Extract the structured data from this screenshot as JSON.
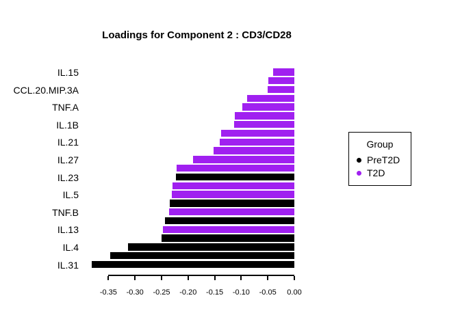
{
  "page": {
    "background": "#ffffff"
  },
  "chart_data": {
    "type": "bar",
    "orientation": "horizontal",
    "title": "Loadings for Component 2 : CD3/CD28",
    "xlabel": "",
    "ylabel": "",
    "xlim": [
      -0.3866,
      0
    ],
    "grid": false,
    "x_ticks": [
      {
        "value": -0.35,
        "label": "-0.35"
      },
      {
        "value": -0.3,
        "label": "-0.30"
      },
      {
        "value": -0.25,
        "label": "-0.25"
      },
      {
        "value": -0.2,
        "label": "-0.20"
      },
      {
        "value": -0.15,
        "label": "-0.15"
      },
      {
        "value": -0.1,
        "label": "-0.10"
      },
      {
        "value": -0.05,
        "label": "-0.05"
      },
      {
        "value": 0.0,
        "label": "0.00"
      }
    ],
    "groups": {
      "PreT2D": "#000000",
      "T2D": "#A020F0"
    },
    "bars": [
      {
        "label": "IL.15",
        "value": -0.04,
        "group": "T2D"
      },
      {
        "label": "",
        "value": -0.049,
        "group": "T2D"
      },
      {
        "label": "CCL.20.MIP.3A",
        "value": -0.05,
        "group": "T2D"
      },
      {
        "label": "",
        "value": -0.089,
        "group": "T2D"
      },
      {
        "label": "TNF.A",
        "value": -0.098,
        "group": "T2D"
      },
      {
        "label": "",
        "value": -0.112,
        "group": "T2D"
      },
      {
        "label": "IL.1B",
        "value": -0.114,
        "group": "T2D"
      },
      {
        "label": "",
        "value": -0.138,
        "group": "T2D"
      },
      {
        "label": "IL.21",
        "value": -0.141,
        "group": "T2D"
      },
      {
        "label": "",
        "value": -0.152,
        "group": "T2D"
      },
      {
        "label": "IL.27",
        "value": -0.191,
        "group": "T2D"
      },
      {
        "label": "",
        "value": -0.222,
        "group": "T2D"
      },
      {
        "label": "IL.23",
        "value": -0.223,
        "group": "PreT2D"
      },
      {
        "label": "",
        "value": -0.229,
        "group": "T2D"
      },
      {
        "label": "IL.5",
        "value": -0.231,
        "group": "T2D"
      },
      {
        "label": "",
        "value": -0.235,
        "group": "PreT2D"
      },
      {
        "label": "TNF.B",
        "value": -0.236,
        "group": "T2D"
      },
      {
        "label": "",
        "value": -0.244,
        "group": "PreT2D"
      },
      {
        "label": "IL.13",
        "value": -0.247,
        "group": "T2D"
      },
      {
        "label": "",
        "value": -0.25,
        "group": "PreT2D"
      },
      {
        "label": "IL.4",
        "value": -0.313,
        "group": "PreT2D"
      },
      {
        "label": "",
        "value": -0.347,
        "group": "PreT2D"
      },
      {
        "label": "IL.31",
        "value": -0.381,
        "group": "PreT2D"
      }
    ],
    "legend_position": "right"
  },
  "legend": {
    "title": "Group",
    "items": [
      {
        "label": "PreT2D",
        "color": "#000000"
      },
      {
        "label": "T2D",
        "color": "#A020F0"
      }
    ]
  }
}
